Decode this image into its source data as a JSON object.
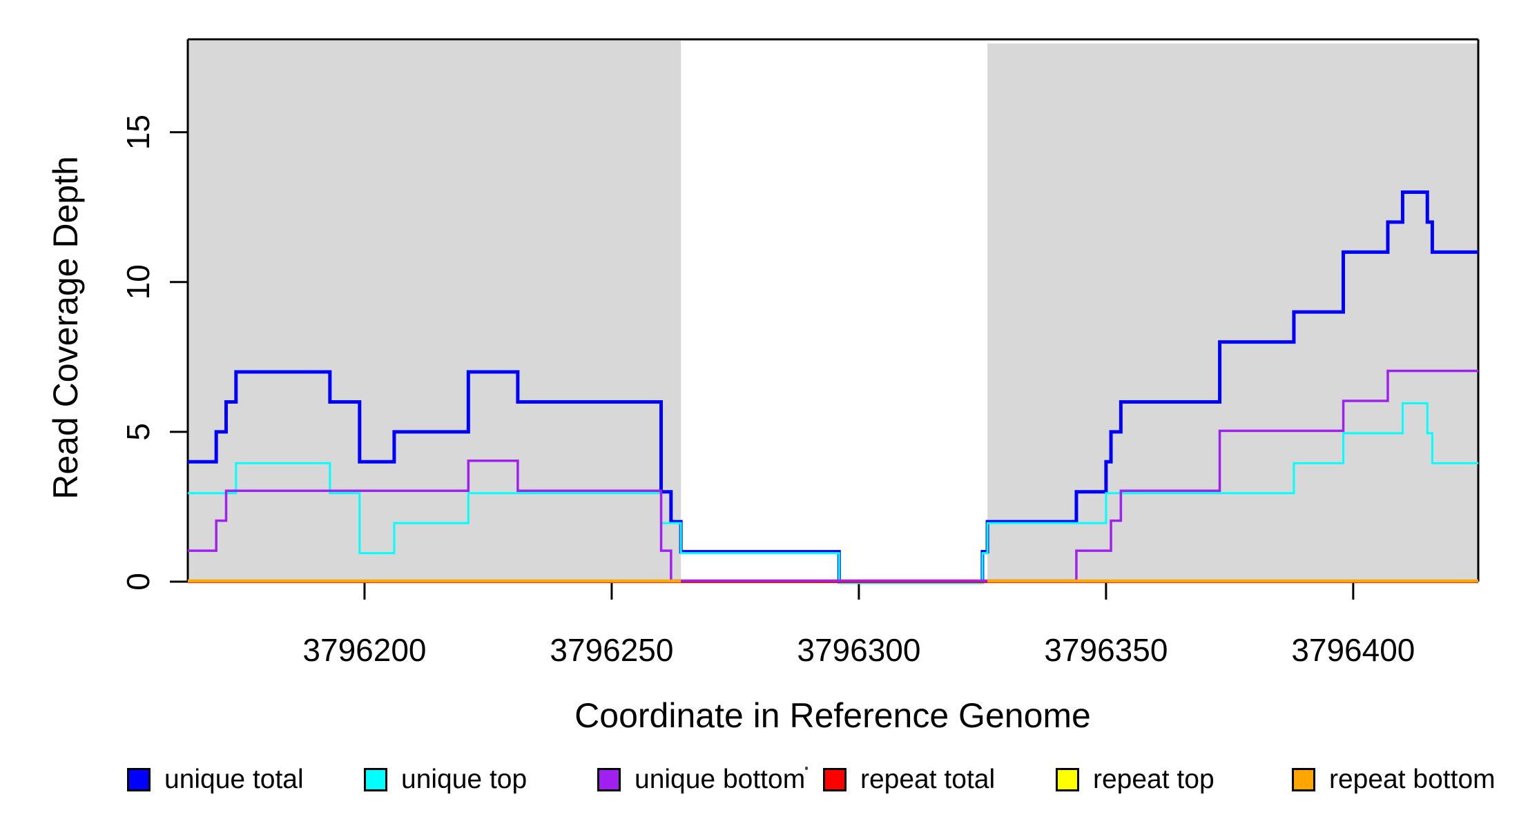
{
  "axes": {
    "x": {
      "label": "Coordinate in Reference Genome",
      "tick_labels": [
        "3796200",
        "3796250",
        "3796300",
        "3796350",
        "3796400"
      ],
      "tick_values": [
        3796200,
        3796250,
        3796300,
        3796350,
        3796400
      ]
    },
    "y": {
      "label": "Read Coverage Depth",
      "tick_labels": [
        "0",
        "5",
        "10",
        "15"
      ],
      "tick_values": [
        0,
        5,
        10,
        15
      ]
    }
  },
  "chart_data": {
    "type": "line",
    "subtype": "step-after",
    "title": "",
    "xlabel": "Coordinate in Reference Genome",
    "ylabel": "Read Coverage Depth",
    "xlim": [
      3796164.25,
      3796425.3
    ],
    "ylim": [
      0,
      18.1
    ],
    "grid": false,
    "legend_position": "bottom",
    "background_color": "#FFFFFF",
    "shading_color": "#D8D8D8",
    "shaded_regions": [
      {
        "name": "repeat-region-left",
        "x1": 3796164.25,
        "x2": 3796264,
        "color": "#D8D8D8"
      },
      {
        "name": "repeat-region-right",
        "x1": 3796326,
        "x2": 3796425.3,
        "color": "#D8D8D8"
      }
    ],
    "series": [
      {
        "name": "unique total",
        "color": "#0000FF",
        "values_step": [
          [
            3796164.25,
            4
          ],
          [
            3796170,
            5
          ],
          [
            3796172,
            6
          ],
          [
            3796174,
            7
          ],
          [
            3796193,
            6
          ],
          [
            3796199,
            4
          ],
          [
            3796206,
            5
          ],
          [
            3796221,
            7
          ],
          [
            3796231,
            6
          ],
          [
            3796260,
            3
          ],
          [
            3796262,
            2
          ],
          [
            3796264,
            1
          ],
          [
            3796296,
            0
          ],
          [
            3796325,
            1
          ],
          [
            3796326,
            2
          ],
          [
            3796344,
            3
          ],
          [
            3796350,
            4
          ],
          [
            3796351,
            5
          ],
          [
            3796353,
            6
          ],
          [
            3796373,
            8
          ],
          [
            3796388,
            9
          ],
          [
            3796398,
            11
          ],
          [
            3796407,
            12
          ],
          [
            3796410,
            13
          ],
          [
            3796415,
            12
          ],
          [
            3796416,
            11
          ]
        ]
      },
      {
        "name": "unique top",
        "color": "#00FFFF",
        "values_step": [
          [
            3796164.25,
            3
          ],
          [
            3796174,
            4
          ],
          [
            3796193,
            3
          ],
          [
            3796199,
            1
          ],
          [
            3796206,
            2
          ],
          [
            3796221,
            3
          ],
          [
            3796260,
            2
          ],
          [
            3796264,
            1
          ],
          [
            3796296,
            0
          ],
          [
            3796325,
            1
          ],
          [
            3796326,
            2
          ],
          [
            3796350,
            3
          ],
          [
            3796388,
            4
          ],
          [
            3796398,
            5
          ],
          [
            3796410,
            6
          ],
          [
            3796415,
            5
          ],
          [
            3796416,
            4
          ]
        ]
      },
      {
        "name": "unique bottom",
        "color": "#A020F0",
        "values_step": [
          [
            3796164.25,
            1
          ],
          [
            3796170,
            2
          ],
          [
            3796172,
            3
          ],
          [
            3796221,
            4
          ],
          [
            3796231,
            3
          ],
          [
            3796260,
            1
          ],
          [
            3796262,
            0
          ],
          [
            3796344,
            1
          ],
          [
            3796351,
            2
          ],
          [
            3796353,
            3
          ],
          [
            3796373,
            5
          ],
          [
            3796398,
            6
          ],
          [
            3796407,
            7
          ]
        ]
      },
      {
        "name": "repeat total",
        "color": "#FF0000",
        "values_step": [
          [
            3796164.25,
            0
          ]
        ]
      },
      {
        "name": "repeat top",
        "color": "#FFFF00",
        "segments": [
          [
            3796164.25,
            3796264,
            0
          ],
          [
            3796326,
            3796425.3,
            0
          ]
        ]
      },
      {
        "name": "repeat bottom",
        "color": "#FFA500",
        "segments": [
          [
            3796164.25,
            3796264,
            0
          ],
          [
            3796326,
            3796425.3,
            0
          ]
        ]
      }
    ]
  },
  "legend": {
    "items": [
      {
        "label": "unique total",
        "color": "#0000FF"
      },
      {
        "label": "unique top",
        "color": "#00FFFF"
      },
      {
        "label": "unique bottom",
        "color": "#A020F0"
      },
      {
        "label": "repeat total",
        "color": "#FF0000"
      },
      {
        "label": "repeat top",
        "color": "#FFFF00"
      },
      {
        "label": "repeat bottom",
        "color": "#FFA500"
      }
    ]
  }
}
